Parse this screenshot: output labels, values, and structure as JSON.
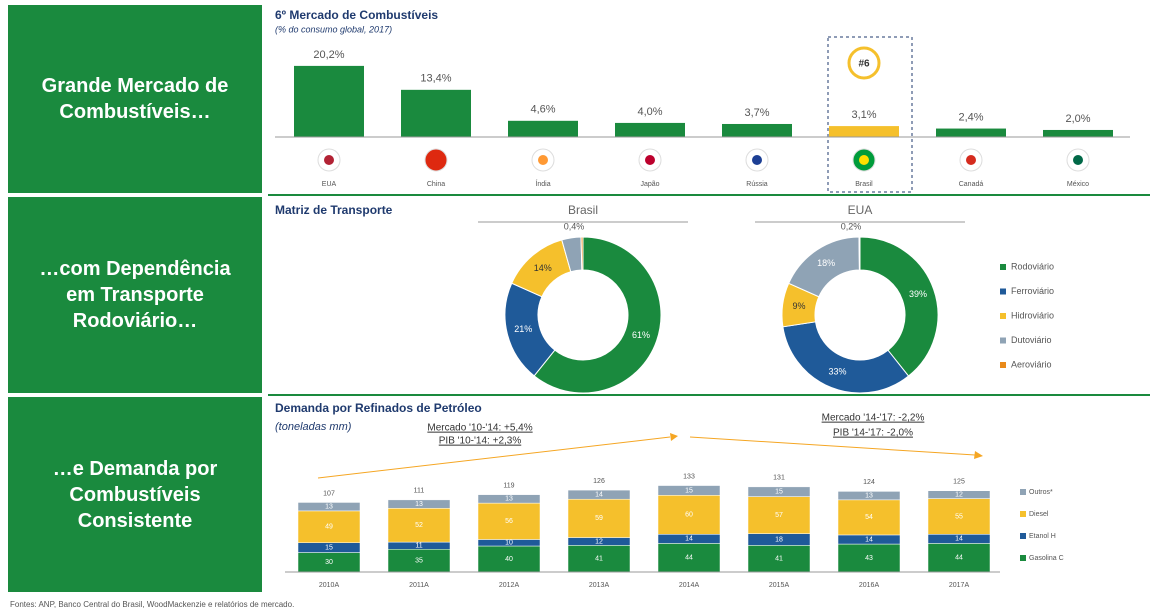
{
  "panels": [
    "Grande Mercado de Combustíveis…",
    "…com Dependência em Transporte Rodoviário…",
    "…e Demanda por Combustíveis Consistente"
  ],
  "footer": "Fontes: ANP, Banco Central do Brasil, WoodMackenzie e relatórios de mercado.",
  "chart_data": [
    {
      "type": "bar",
      "title": "6º Mercado de Combustíveis",
      "subtitle": "(% do consumo global, 2017)",
      "categories": [
        "EUA",
        "China",
        "Índia",
        "Japão",
        "Rússia",
        "Brasil",
        "Canadá",
        "México"
      ],
      "values": [
        20.2,
        13.4,
        4.6,
        4.0,
        3.7,
        3.1,
        2.4,
        2.0
      ],
      "value_labels": [
        "20,2%",
        "13,4%",
        "4,6%",
        "4,0%",
        "3,7%",
        "3,1%",
        "2,4%",
        "2,0%"
      ],
      "color": "#1a8a3e",
      "highlight": 5,
      "highlight_color": "#f5c02c",
      "badge": "#6",
      "ylim": [
        0,
        25
      ]
    },
    {
      "type": "donut",
      "title": "Matriz de Transporte",
      "categories": [
        "Rodoviário",
        "Ferroviário",
        "Hidroviário",
        "Dutoviário",
        "Aeroviário"
      ],
      "colors": [
        "#1a8a3e",
        "#1f5a99",
        "#f5c02c",
        "#8fa3b5",
        "#e98a1a"
      ],
      "series": [
        {
          "name": "Brasil",
          "values": [
            61,
            21,
            14,
            4,
            0.4
          ],
          "value_labels": [
            "61%",
            "21%",
            "14%",
            null,
            "0,4%"
          ]
        },
        {
          "name": "EUA",
          "values": [
            39,
            33,
            9,
            18,
            0.2
          ],
          "value_labels": [
            "39%",
            "33%",
            "9%",
            "18%",
            "0,2%"
          ]
        }
      ]
    },
    {
      "type": "stacked_bar",
      "title": "Demanda por Refinados de Petróleo",
      "subtitle": "(toneladas mm)",
      "categories": [
        "2010A",
        "2011A",
        "2012A",
        "2013A",
        "2014A",
        "2015A",
        "2016A",
        "2017A"
      ],
      "series": [
        {
          "name": "Gasolina C",
          "color": "#1a8a3e",
          "values": [
            30,
            35,
            40,
            41,
            44,
            41,
            43,
            44
          ]
        },
        {
          "name": "Etanol H",
          "color": "#1f5a99",
          "values": [
            15,
            11,
            10,
            12,
            14,
            18,
            14,
            14
          ]
        },
        {
          "name": "Diesel",
          "color": "#f5c02c",
          "values": [
            49,
            52,
            56,
            59,
            60,
            57,
            54,
            55
          ]
        },
        {
          "name": "Outros*",
          "color": "#8fa3b5",
          "values": [
            13,
            13,
            13,
            14,
            15,
            15,
            13,
            12
          ]
        }
      ],
      "totals": [
        107,
        111,
        119,
        126,
        133,
        131,
        124,
        125
      ],
      "annotations": [
        "Mercado '10-'14: +5,4%",
        "PIB '10-'14: +2,3%",
        "Mercado '14-'17: -2,2%",
        "PIB '14-'17: -2,0%"
      ],
      "ylim": [
        0,
        160
      ]
    }
  ]
}
